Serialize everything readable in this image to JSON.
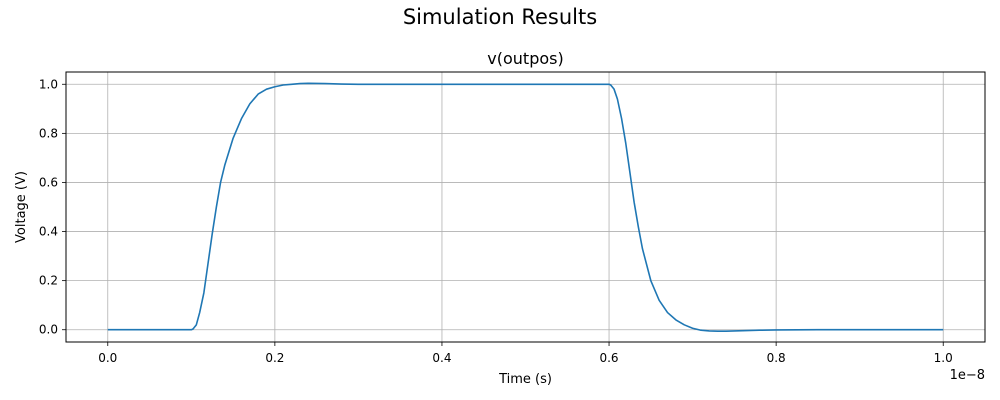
{
  "figure": {
    "suptitle": "Simulation Results"
  },
  "chart_data": {
    "type": "line",
    "title": "v(outpos)",
    "xlabel": "Time (s)",
    "ylabel": "Voltage (V)",
    "x_offset_text": "1e−8",
    "x_scale_exponent": -8,
    "xlim": [
      -0.05,
      1.05
    ],
    "ylim": [
      -0.05,
      1.05
    ],
    "xticks": [
      0.0,
      0.2,
      0.4,
      0.6,
      0.8,
      1.0
    ],
    "xtick_labels": [
      "0.0",
      "0.2",
      "0.4",
      "0.6",
      "0.8",
      "1.0"
    ],
    "yticks": [
      0.0,
      0.2,
      0.4,
      0.6,
      0.8,
      1.0
    ],
    "ytick_labels": [
      "0.0",
      "0.2",
      "0.4",
      "0.6",
      "0.8",
      "1.0"
    ],
    "grid": true,
    "legend": "none",
    "series": [
      {
        "color": "#1f77b4",
        "x": [
          0.0,
          0.05,
          0.1,
          0.102,
          0.106,
          0.11,
          0.115,
          0.12,
          0.125,
          0.13,
          0.135,
          0.14,
          0.15,
          0.16,
          0.17,
          0.18,
          0.19,
          0.2,
          0.21,
          0.22,
          0.23,
          0.24,
          0.26,
          0.28,
          0.3,
          0.35,
          0.4,
          0.45,
          0.5,
          0.55,
          0.6,
          0.602,
          0.606,
          0.61,
          0.615,
          0.62,
          0.625,
          0.63,
          0.635,
          0.64,
          0.65,
          0.66,
          0.67,
          0.68,
          0.69,
          0.7,
          0.71,
          0.72,
          0.73,
          0.74,
          0.75,
          0.76,
          0.78,
          0.8,
          0.85,
          0.9,
          0.95,
          1.0
        ],
        "y": [
          0.0,
          0.0,
          0.0,
          0.003,
          0.02,
          0.07,
          0.15,
          0.27,
          0.39,
          0.5,
          0.6,
          0.67,
          0.78,
          0.86,
          0.92,
          0.96,
          0.98,
          0.99,
          0.997,
          1.0,
          1.003,
          1.004,
          1.003,
          1.001,
          1.0,
          1.0,
          1.0,
          1.0,
          1.0,
          1.0,
          1.0,
          0.997,
          0.98,
          0.94,
          0.86,
          0.76,
          0.64,
          0.52,
          0.42,
          0.33,
          0.2,
          0.12,
          0.07,
          0.04,
          0.02,
          0.006,
          -0.002,
          -0.005,
          -0.006,
          -0.006,
          -0.005,
          -0.004,
          -0.002,
          -0.001,
          0.0,
          0.0,
          0.0,
          0.0
        ]
      }
    ]
  }
}
